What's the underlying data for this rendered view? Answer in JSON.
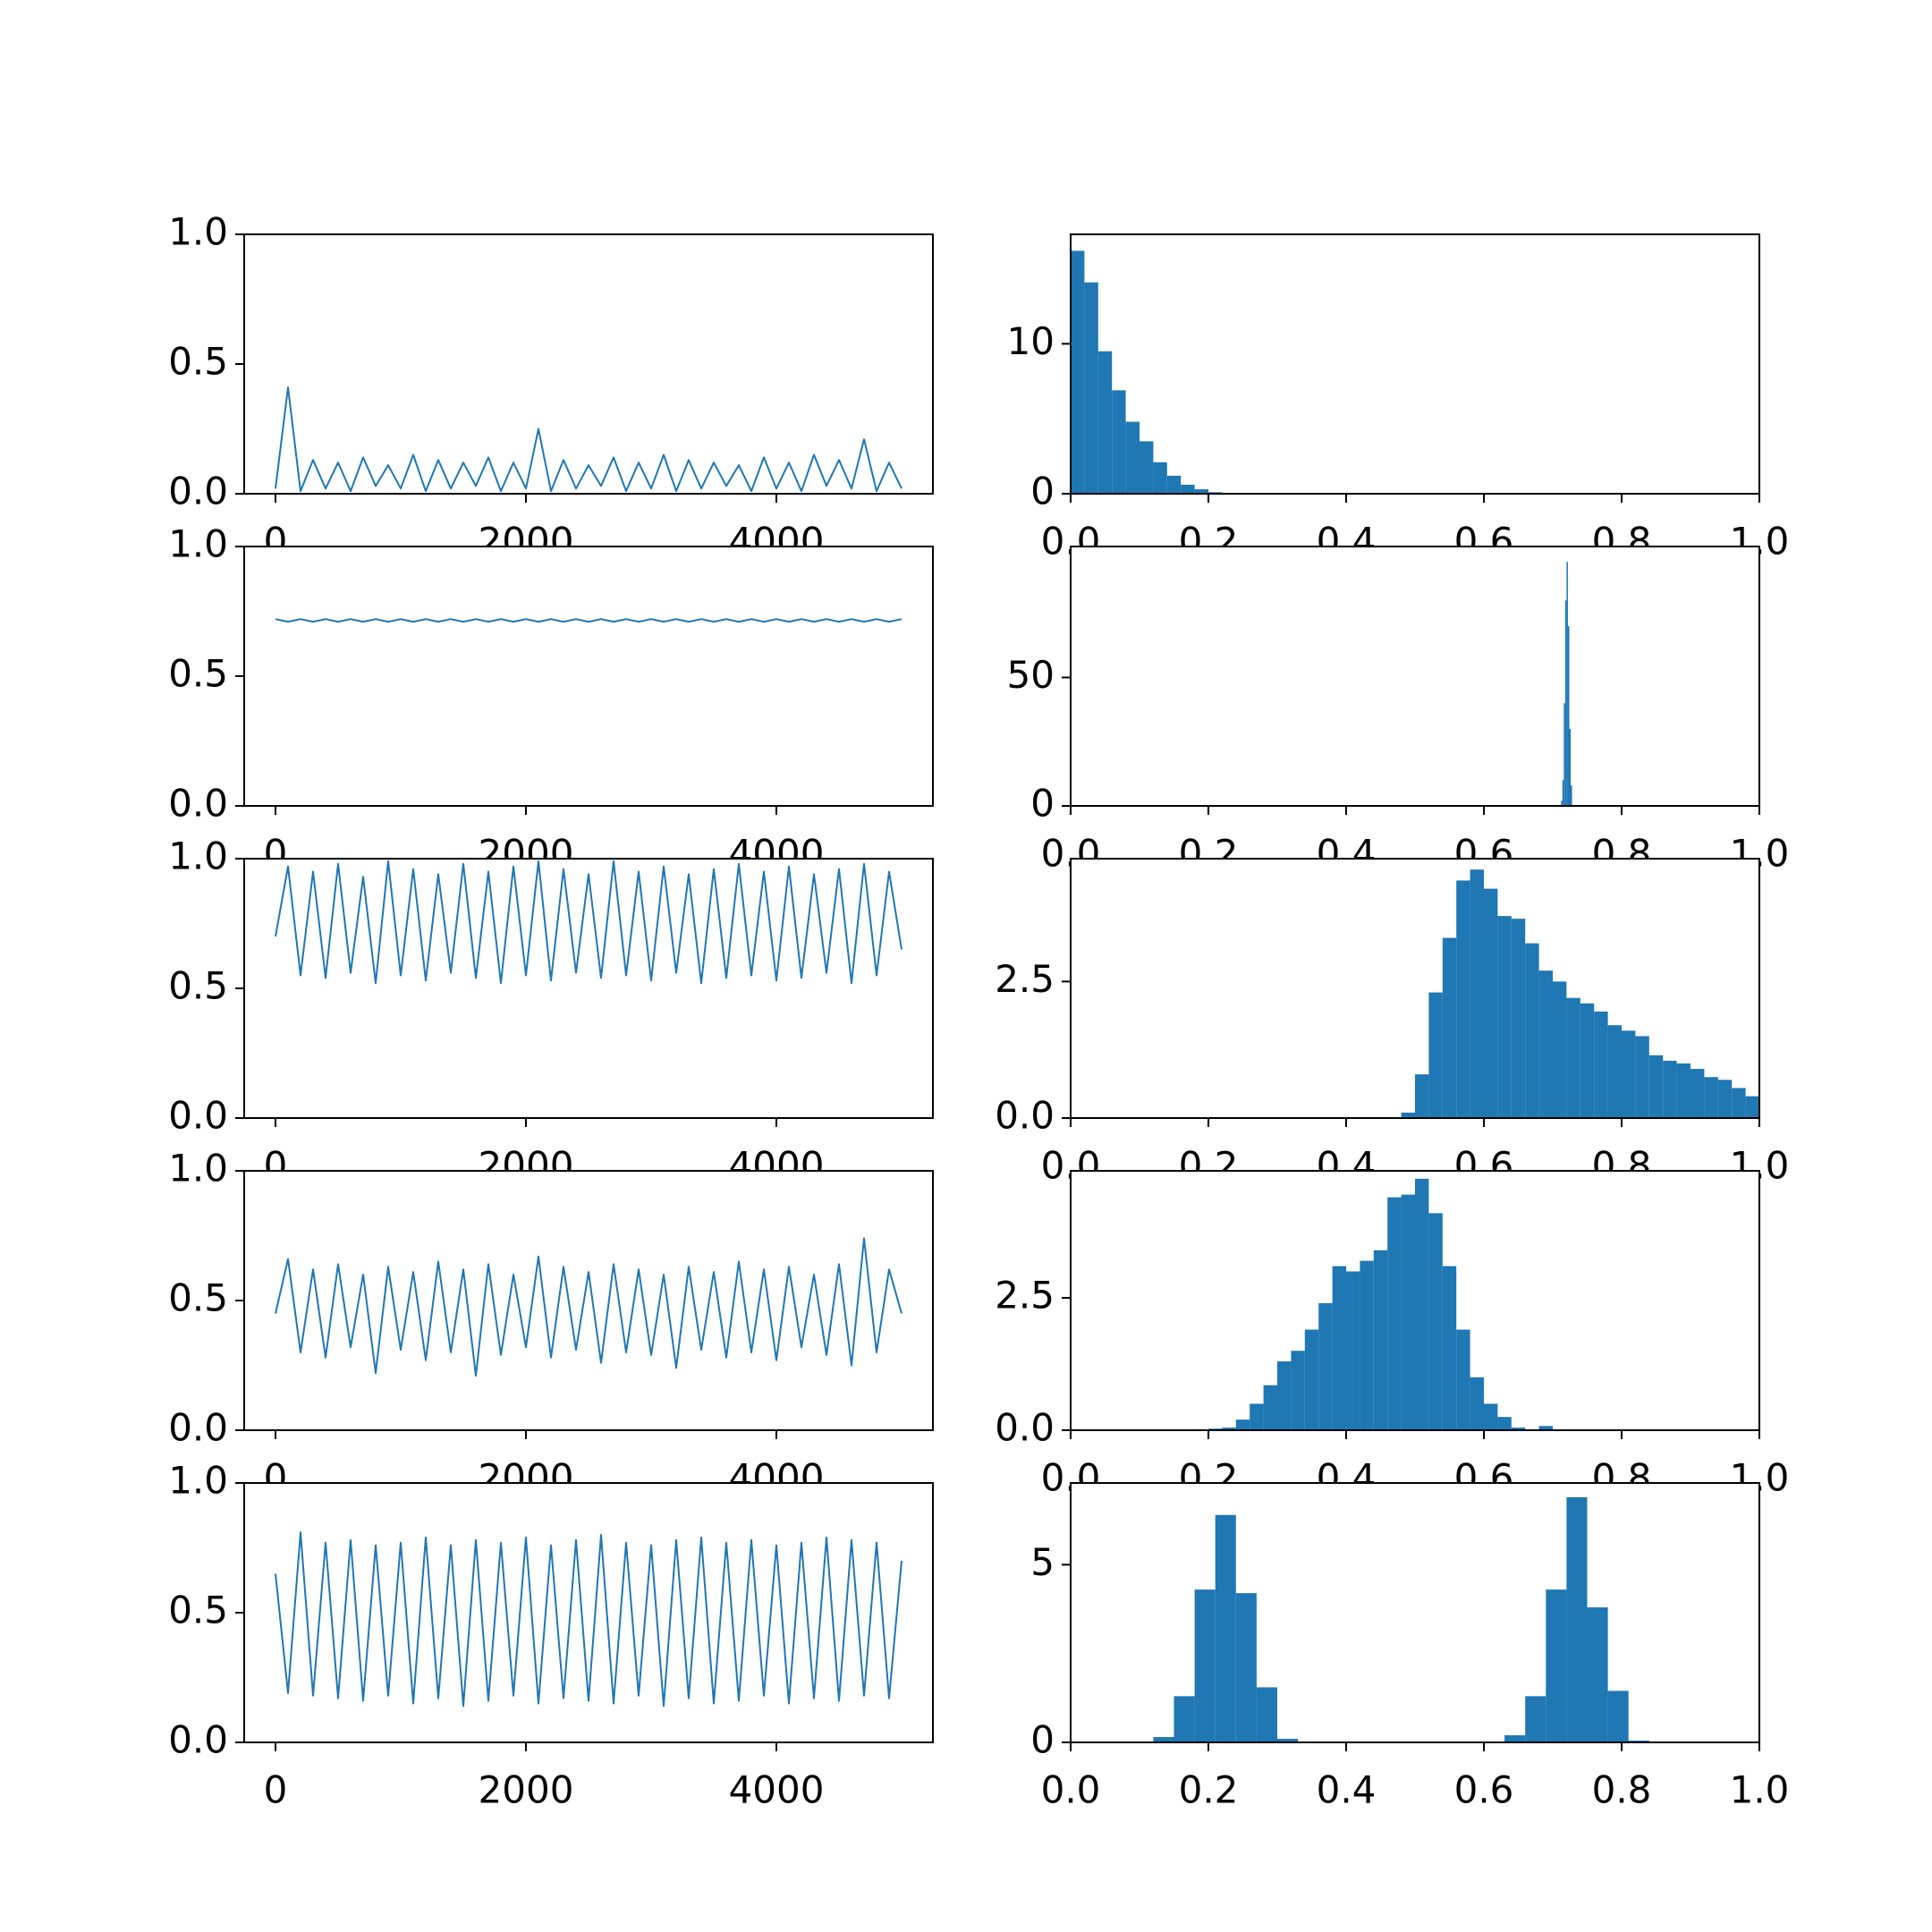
{
  "chart_data": [
    {
      "type": "line",
      "color": "#1f77b4",
      "xlim": [
        -250,
        5250
      ],
      "ylim": [
        0,
        1
      ],
      "xticks": [
        0,
        2000,
        4000
      ],
      "yticks": [
        {
          "value": 0,
          "label": "0.0"
        },
        0.5,
        {
          "value": 1,
          "label": "1.0"
        }
      ],
      "x": [
        0,
        100,
        200,
        300,
        400,
        500,
        600,
        700,
        800,
        900,
        1000,
        1100,
        1200,
        1300,
        1400,
        1500,
        1600,
        1700,
        1800,
        1900,
        2000,
        2100,
        2200,
        2300,
        2400,
        2500,
        2600,
        2700,
        2800,
        2900,
        3000,
        3100,
        3200,
        3300,
        3400,
        3500,
        3600,
        3700,
        3800,
        3900,
        4000,
        4100,
        4200,
        4300,
        4400,
        4500,
        4600,
        4700,
        4800,
        4900,
        5000
      ],
      "values": [
        0.02,
        0.41,
        0.01,
        0.13,
        0.02,
        0.12,
        0.01,
        0.14,
        0.03,
        0.11,
        0.02,
        0.15,
        0.01,
        0.13,
        0.02,
        0.12,
        0.03,
        0.14,
        0.01,
        0.12,
        0.02,
        0.25,
        0.01,
        0.13,
        0.02,
        0.11,
        0.03,
        0.14,
        0.01,
        0.12,
        0.02,
        0.15,
        0.01,
        0.13,
        0.02,
        0.12,
        0.03,
        0.11,
        0.01,
        0.14,
        0.02,
        0.12,
        0.01,
        0.15,
        0.03,
        0.13,
        0.02,
        0.21,
        0.01,
        0.12,
        0.02
      ]
    },
    {
      "type": "histogram",
      "color": "#1f77b4",
      "xlim": [
        0,
        1
      ],
      "ylim": [
        0,
        17.3
      ],
      "xticks": [
        {
          "value": 0,
          "label": "0.0"
        },
        0.2,
        0.4,
        0.6,
        0.8,
        {
          "value": 1,
          "label": "1.0"
        }
      ],
      "yticks": [
        0,
        10
      ],
      "bins": [
        0,
        0.02,
        0.04,
        0.06,
        0.08,
        0.1,
        0.12,
        0.14,
        0.16,
        0.18,
        0.2,
        0.22
      ],
      "values": [
        16.2,
        14.1,
        9.5,
        6.9,
        4.8,
        3.5,
        2.1,
        1.2,
        0.6,
        0.3,
        0.1
      ]
    },
    {
      "type": "line",
      "color": "#1f77b4",
      "xlim": [
        -250,
        5250
      ],
      "ylim": [
        0,
        1
      ],
      "xticks": [
        0,
        2000,
        4000
      ],
      "yticks": [
        {
          "value": 0,
          "label": "0.0"
        },
        0.5,
        {
          "value": 1,
          "label": "1.0"
        }
      ],
      "x": [
        0,
        100,
        200,
        300,
        400,
        500,
        600,
        700,
        800,
        900,
        1000,
        1100,
        1200,
        1300,
        1400,
        1500,
        1600,
        1700,
        1800,
        1900,
        2000,
        2100,
        2200,
        2300,
        2400,
        2500,
        2600,
        2700,
        2800,
        2900,
        3000,
        3100,
        3200,
        3300,
        3400,
        3500,
        3600,
        3700,
        3800,
        3900,
        4000,
        4100,
        4200,
        4300,
        4400,
        4500,
        4600,
        4700,
        4800,
        4900,
        5000
      ],
      "values": [
        0.72,
        0.71,
        0.72,
        0.71,
        0.72,
        0.71,
        0.72,
        0.71,
        0.72,
        0.71,
        0.72,
        0.71,
        0.72,
        0.71,
        0.72,
        0.71,
        0.72,
        0.71,
        0.72,
        0.71,
        0.72,
        0.71,
        0.72,
        0.71,
        0.72,
        0.71,
        0.72,
        0.71,
        0.72,
        0.71,
        0.72,
        0.71,
        0.72,
        0.71,
        0.72,
        0.71,
        0.72,
        0.71,
        0.72,
        0.71,
        0.72,
        0.71,
        0.72,
        0.71,
        0.72,
        0.71,
        0.72,
        0.71,
        0.72,
        0.71,
        0.72
      ]
    },
    {
      "type": "histogram",
      "color": "#1f77b4",
      "xlim": [
        0,
        1
      ],
      "ylim": [
        0,
        101
      ],
      "xticks": [
        {
          "value": 0,
          "label": "0.0"
        },
        0.2,
        0.4,
        0.6,
        0.8,
        {
          "value": 1,
          "label": "1.0"
        }
      ],
      "yticks": [
        0,
        50
      ],
      "bins": [
        0.712,
        0.714,
        0.716,
        0.718,
        0.72,
        0.722,
        0.724,
        0.726,
        0.728
      ],
      "values": [
        2,
        10,
        40,
        80,
        95,
        70,
        30,
        8
      ]
    },
    {
      "type": "line",
      "color": "#1f77b4",
      "xlim": [
        -250,
        5250
      ],
      "ylim": [
        0,
        1
      ],
      "xticks": [
        0,
        2000,
        4000
      ],
      "yticks": [
        {
          "value": 0,
          "label": "0.0"
        },
        0.5,
        {
          "value": 1,
          "label": "1.0"
        }
      ],
      "x": [
        0,
        100,
        200,
        300,
        400,
        500,
        600,
        700,
        800,
        900,
        1000,
        1100,
        1200,
        1300,
        1400,
        1500,
        1600,
        1700,
        1800,
        1900,
        2000,
        2100,
        2200,
        2300,
        2400,
        2500,
        2600,
        2700,
        2800,
        2900,
        3000,
        3100,
        3200,
        3300,
        3400,
        3500,
        3600,
        3700,
        3800,
        3900,
        4000,
        4100,
        4200,
        4300,
        4400,
        4500,
        4600,
        4700,
        4800,
        4900,
        5000
      ],
      "values": [
        0.7,
        0.97,
        0.55,
        0.95,
        0.54,
        0.98,
        0.56,
        0.93,
        0.52,
        0.99,
        0.55,
        0.96,
        0.53,
        0.94,
        0.56,
        0.98,
        0.54,
        0.95,
        0.52,
        0.97,
        0.55,
        0.99,
        0.53,
        0.96,
        0.56,
        0.94,
        0.54,
        0.99,
        0.55,
        0.95,
        0.53,
        0.97,
        0.56,
        0.94,
        0.52,
        0.96,
        0.54,
        0.98,
        0.55,
        0.95,
        0.53,
        0.97,
        0.54,
        0.94,
        0.56,
        0.96,
        0.52,
        0.98,
        0.55,
        0.95,
        0.65
      ]
    },
    {
      "type": "histogram",
      "color": "#1f77b4",
      "xlim": [
        0,
        1
      ],
      "ylim": [
        0,
        4.75
      ],
      "xticks": [
        {
          "value": 0,
          "label": "0.0"
        },
        0.2,
        0.4,
        0.6,
        0.8,
        {
          "value": 1,
          "label": "1.0"
        }
      ],
      "yticks": [
        {
          "value": 0,
          "label": "0.0"
        },
        2.5
      ],
      "bins": [
        0.48,
        0.5,
        0.52,
        0.54,
        0.56,
        0.58,
        0.6,
        0.62,
        0.64,
        0.66,
        0.68,
        0.7,
        0.72,
        0.74,
        0.76,
        0.78,
        0.8,
        0.82,
        0.84,
        0.86,
        0.88,
        0.9,
        0.92,
        0.94,
        0.96,
        0.98,
        1.0
      ],
      "values": [
        0.1,
        0.8,
        2.3,
        3.3,
        4.35,
        4.55,
        4.2,
        3.7,
        3.65,
        3.2,
        2.7,
        2.5,
        2.2,
        2.1,
        1.95,
        1.7,
        1.6,
        1.5,
        1.15,
        1.05,
        1.0,
        0.9,
        0.75,
        0.7,
        0.55,
        0.4
      ]
    },
    {
      "type": "line",
      "color": "#1f77b4",
      "xlim": [
        -250,
        5250
      ],
      "ylim": [
        0,
        1
      ],
      "xticks": [
        0,
        2000,
        4000
      ],
      "yticks": [
        {
          "value": 0,
          "label": "0.0"
        },
        0.5,
        {
          "value": 1,
          "label": "1.0"
        }
      ],
      "x": [
        0,
        100,
        200,
        300,
        400,
        500,
        600,
        700,
        800,
        900,
        1000,
        1100,
        1200,
        1300,
        1400,
        1500,
        1600,
        1700,
        1800,
        1900,
        2000,
        2100,
        2200,
        2300,
        2400,
        2500,
        2600,
        2700,
        2800,
        2900,
        3000,
        3100,
        3200,
        3300,
        3400,
        3500,
        3600,
        3700,
        3800,
        3900,
        4000,
        4100,
        4200,
        4300,
        4400,
        4500,
        4600,
        4700,
        4800,
        4900,
        5000
      ],
      "values": [
        0.45,
        0.66,
        0.3,
        0.62,
        0.28,
        0.64,
        0.32,
        0.6,
        0.22,
        0.63,
        0.31,
        0.61,
        0.27,
        0.65,
        0.3,
        0.62,
        0.21,
        0.64,
        0.29,
        0.6,
        0.32,
        0.67,
        0.28,
        0.63,
        0.31,
        0.61,
        0.26,
        0.64,
        0.3,
        0.62,
        0.29,
        0.6,
        0.24,
        0.63,
        0.31,
        0.61,
        0.28,
        0.65,
        0.3,
        0.62,
        0.27,
        0.63,
        0.32,
        0.6,
        0.29,
        0.64,
        0.25,
        0.74,
        0.3,
        0.62,
        0.45
      ]
    },
    {
      "type": "histogram",
      "color": "#1f77b4",
      "xlim": [
        0,
        1
      ],
      "ylim": [
        0,
        4.9
      ],
      "xticks": [
        {
          "value": 0,
          "label": "0.0"
        },
        0.2,
        0.4,
        0.6,
        0.8,
        {
          "value": 1,
          "label": "1.0"
        }
      ],
      "yticks": [
        {
          "value": 0,
          "label": "0.0"
        },
        2.5
      ],
      "bins": [
        0.2,
        0.22,
        0.24,
        0.26,
        0.28,
        0.3,
        0.32,
        0.34,
        0.36,
        0.38,
        0.4,
        0.42,
        0.44,
        0.46,
        0.48,
        0.5,
        0.52,
        0.54,
        0.56,
        0.58,
        0.6,
        0.62,
        0.64,
        0.66,
        0.68,
        0.7
      ],
      "values": [
        0.03,
        0.05,
        0.2,
        0.5,
        0.85,
        1.3,
        1.5,
        1.9,
        2.4,
        3.1,
        3.0,
        3.2,
        3.4,
        4.4,
        4.45,
        4.75,
        4.1,
        3.1,
        1.9,
        1.0,
        0.5,
        0.25,
        0.05,
        0,
        0.08
      ]
    },
    {
      "type": "line",
      "color": "#1f77b4",
      "xlim": [
        -250,
        5250
      ],
      "ylim": [
        0,
        1
      ],
      "xticks": [
        0,
        2000,
        4000
      ],
      "yticks": [
        {
          "value": 0,
          "label": "0.0"
        },
        0.5,
        {
          "value": 1,
          "label": "1.0"
        }
      ],
      "x": [
        0,
        100,
        200,
        300,
        400,
        500,
        600,
        700,
        800,
        900,
        1000,
        1100,
        1200,
        1300,
        1400,
        1500,
        1600,
        1700,
        1800,
        1900,
        2000,
        2100,
        2200,
        2300,
        2400,
        2500,
        2600,
        2700,
        2800,
        2900,
        3000,
        3100,
        3200,
        3300,
        3400,
        3500,
        3600,
        3700,
        3800,
        3900,
        4000,
        4100,
        4200,
        4300,
        4400,
        4500,
        4600,
        4700,
        4800,
        4900,
        5000
      ],
      "values": [
        0.65,
        0.19,
        0.81,
        0.18,
        0.77,
        0.17,
        0.78,
        0.16,
        0.76,
        0.18,
        0.77,
        0.15,
        0.79,
        0.17,
        0.76,
        0.14,
        0.78,
        0.16,
        0.77,
        0.18,
        0.79,
        0.15,
        0.76,
        0.17,
        0.78,
        0.16,
        0.8,
        0.15,
        0.77,
        0.18,
        0.76,
        0.14,
        0.78,
        0.17,
        0.79,
        0.15,
        0.77,
        0.16,
        0.78,
        0.18,
        0.76,
        0.15,
        0.77,
        0.17,
        0.79,
        0.16,
        0.78,
        0.18,
        0.77,
        0.17,
        0.7
      ]
    },
    {
      "type": "histogram",
      "color": "#1f77b4",
      "xlim": [
        0,
        1
      ],
      "ylim": [
        0,
        7.3
      ],
      "xticks": [
        {
          "value": 0,
          "label": "0.0"
        },
        0.2,
        0.4,
        0.6,
        0.8,
        {
          "value": 1,
          "label": "1.0"
        }
      ],
      "yticks": [
        0,
        5
      ],
      "bins": [
        0.12,
        0.15,
        0.18,
        0.21,
        0.24,
        0.27,
        0.3,
        0.33,
        0.36,
        0.39,
        0.42,
        0.45,
        0.48,
        0.51,
        0.54,
        0.57,
        0.6,
        0.63,
        0.66,
        0.69,
        0.72,
        0.75,
        0.78,
        0.81,
        0.84
      ],
      "values": [
        0.15,
        1.3,
        4.3,
        6.4,
        4.2,
        1.55,
        0.1,
        0,
        0,
        0,
        0,
        0,
        0,
        0,
        0,
        0,
        0,
        0.2,
        1.3,
        4.3,
        6.9,
        3.8,
        1.45,
        0.05
      ]
    }
  ]
}
